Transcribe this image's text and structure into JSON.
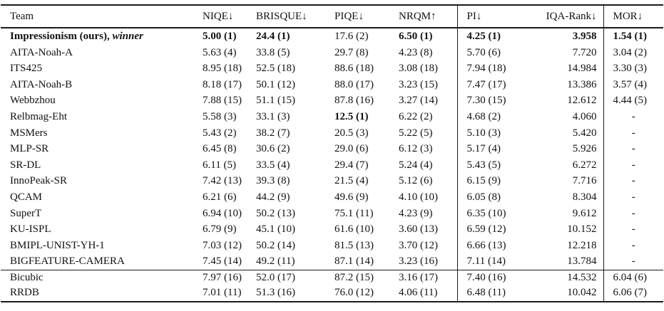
{
  "table": {
    "columns": [
      {
        "key": "team",
        "label": "Team",
        "align": "left"
      },
      {
        "key": "niqe",
        "label": "NIQE↓"
      },
      {
        "key": "brisque",
        "label": "BRISQUE↓"
      },
      {
        "key": "piqe",
        "label": "PIQE↓"
      },
      {
        "key": "nrqm",
        "label": "NRQM↑"
      },
      {
        "key": "pi",
        "label": "PI↓",
        "sep_before": true
      },
      {
        "key": "iqa-rank",
        "label": "IQA-Rank↓",
        "align": "right"
      },
      {
        "key": "mor",
        "label": "MOR↓",
        "sep_before": true
      }
    ],
    "rows": [
      {
        "team_parts": [
          {
            "text": "Impressionism (ours), ",
            "style": "bold"
          },
          {
            "text": "winner",
            "style": "bold-italic"
          }
        ],
        "cells": [
          "5.00 (1)",
          "24.4 (1)",
          "17.6 (2)",
          "6.50 (1)",
          "4.25 (1)",
          "3.958",
          "1.54 (1)"
        ],
        "bold_cells": [
          0,
          1,
          3,
          4,
          5,
          6
        ]
      },
      {
        "team": "AITA-Noah-A",
        "cells": [
          "5.63 (4)",
          "33.8 (5)",
          "29.7 (8)",
          "4.23 (8)",
          "5.70 (6)",
          "7.720",
          "3.04 (2)"
        ],
        "bold_cells": []
      },
      {
        "team": "ITS425",
        "cells": [
          "8.95 (18)",
          "52.5 (18)",
          "88.6 (18)",
          "3.08 (18)",
          "7.94 (18)",
          "14.984",
          "3.30 (3)"
        ],
        "bold_cells": []
      },
      {
        "team": "AITA-Noah-B",
        "cells": [
          "8.18 (17)",
          "50.1 (12)",
          "88.0 (17)",
          "3.23 (15)",
          "7.47 (17)",
          "13.386",
          "3.57 (4)"
        ],
        "bold_cells": []
      },
      {
        "team": "Webbzhou",
        "cells": [
          "7.88 (15)",
          "51.1 (15)",
          "87.8 (16)",
          "3.27 (14)",
          "7.30 (15)",
          "12.612",
          "4.44 (5)"
        ],
        "bold_cells": []
      },
      {
        "team": "Relbmag-Eht",
        "cells": [
          "5.58 (3)",
          "33.1 (3)",
          "12.5 (1)",
          "6.22 (2)",
          "4.68 (2)",
          "4.060",
          "-"
        ],
        "bold_cells": [
          2
        ]
      },
      {
        "team": "MSMers",
        "cells": [
          "5.43 (2)",
          "38.2 (7)",
          "20.5 (3)",
          "5.22 (5)",
          "5.10 (3)",
          "5.420",
          "-"
        ],
        "bold_cells": []
      },
      {
        "team": "MLP-SR",
        "cells": [
          "6.45 (8)",
          "30.6 (2)",
          "29.0 (6)",
          "6.12 (3)",
          "5.17 (4)",
          "5.926",
          "-"
        ],
        "bold_cells": []
      },
      {
        "team": "SR-DL",
        "cells": [
          "6.11 (5)",
          "33.5 (4)",
          "29.4 (7)",
          "5.24 (4)",
          "5.43 (5)",
          "6.272",
          "-"
        ],
        "bold_cells": []
      },
      {
        "team": "InnoPeak-SR",
        "cells": [
          "7.42 (13)",
          "39.3 (8)",
          "21.5 (4)",
          "5.12 (6)",
          "6.15 (9)",
          "7.716",
          "-"
        ],
        "bold_cells": []
      },
      {
        "team": "QCAM",
        "cells": [
          "6.21 (6)",
          "44.2 (9)",
          "49.6 (9)",
          "4.10 (10)",
          "6.05 (8)",
          "8.304",
          "-"
        ],
        "bold_cells": []
      },
      {
        "team": "SuperT",
        "cells": [
          "6.94 (10)",
          "50.2 (13)",
          "75.1 (11)",
          "4.23 (9)",
          "6.35 (10)",
          "9.612",
          "-"
        ],
        "bold_cells": []
      },
      {
        "team": "KU-ISPL",
        "cells": [
          "6.79 (9)",
          "45.1 (10)",
          "61.6 (10)",
          "3.60 (13)",
          "6.59 (12)",
          "10.152",
          "-"
        ],
        "bold_cells": []
      },
      {
        "team": "BMIPL-UNIST-YH-1",
        "cells": [
          "7.03 (12)",
          "50.2 (14)",
          "81.5 (13)",
          "3.70 (12)",
          "6.66 (13)",
          "12.218",
          "-"
        ],
        "bold_cells": []
      },
      {
        "team": "BIGFEATURE-CAMERA",
        "cells": [
          "7.45 (14)",
          "49.2 (11)",
          "87.1 (14)",
          "3.23 (16)",
          "7.11 (14)",
          "13.784",
          "-"
        ],
        "bold_cells": []
      },
      {
        "team": "Bicubic",
        "cells": [
          "7.97 (16)",
          "52.0 (17)",
          "87.2 (15)",
          "3.16 (17)",
          "7.40 (16)",
          "14.532",
          "6.04 (6)"
        ],
        "bold_cells": [],
        "section": "baseline",
        "rule_above": true
      },
      {
        "team": "RRDB",
        "cells": [
          "7.01 (11)",
          "51.3 (16)",
          "76.0 (12)",
          "4.06 (11)",
          "6.48 (11)",
          "10.042",
          "6.06 (7)"
        ],
        "bold_cells": [],
        "section": "baseline"
      }
    ]
  }
}
